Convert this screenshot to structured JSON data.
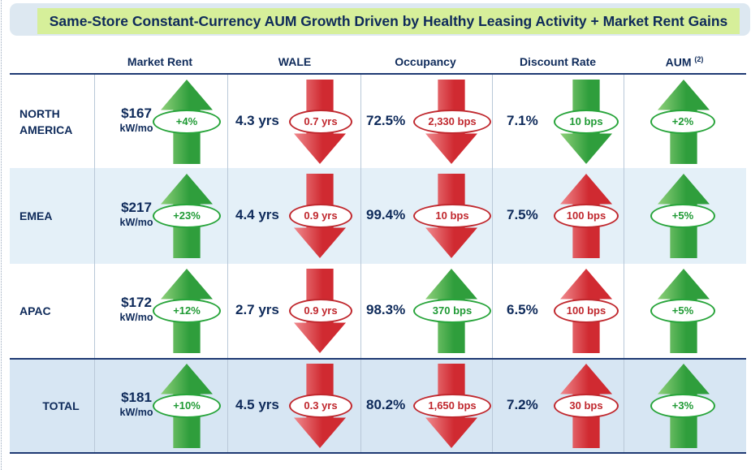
{
  "title": "Same-Store Constant-Currency AUM Growth Driven by Healthy Leasing Activity + Market Rent Gains",
  "headers": {
    "market_rent": "Market Rent",
    "wale": "WALE",
    "occupancy": "Occupancy",
    "discount_rate": "Discount Rate",
    "aum": "AUM",
    "aum_note": "(2)"
  },
  "colors": {
    "up_green": "#3aa845",
    "down_red": "#d9363c",
    "navy": "#0e2a5a"
  },
  "rows": [
    {
      "region": [
        "NORTH",
        "AMERICA"
      ],
      "market_rent": {
        "value": "$167",
        "unit": "kW/mo",
        "change": "+4%",
        "direction": "up"
      },
      "wale": {
        "value": "4.3 yrs",
        "change": "0.7 yrs",
        "direction": "down"
      },
      "occupancy": {
        "value": "72.5%",
        "change": "2,330 bps",
        "direction": "down"
      },
      "discount_rate": {
        "value": "7.1%",
        "change": "10 bps",
        "direction": "down",
        "color": "green"
      },
      "aum": {
        "change": "+2%",
        "direction": "up"
      }
    },
    {
      "region": [
        "EMEA"
      ],
      "market_rent": {
        "value": "$217",
        "unit": "kW/mo",
        "change": "+23%",
        "direction": "up"
      },
      "wale": {
        "value": "4.4 yrs",
        "change": "0.9 yrs",
        "direction": "down"
      },
      "occupancy": {
        "value": "99.4%",
        "change": "10 bps",
        "direction": "down"
      },
      "discount_rate": {
        "value": "7.5%",
        "change": "100 bps",
        "direction": "up",
        "color": "red"
      },
      "aum": {
        "change": "+5%",
        "direction": "up"
      }
    },
    {
      "region": [
        "APAC"
      ],
      "market_rent": {
        "value": "$172",
        "unit": "kW/mo",
        "change": "+12%",
        "direction": "up"
      },
      "wale": {
        "value": "2.7 yrs",
        "change": "0.9 yrs",
        "direction": "down"
      },
      "occupancy": {
        "value": "98.3%",
        "change": "370 bps",
        "direction": "up"
      },
      "discount_rate": {
        "value": "6.5%",
        "change": "100 bps",
        "direction": "up",
        "color": "red"
      },
      "aum": {
        "change": "+5%",
        "direction": "up"
      }
    },
    {
      "region": [
        "TOTAL"
      ],
      "market_rent": {
        "value": "$181",
        "unit": "kW/mo",
        "change": "+10%",
        "direction": "up"
      },
      "wale": {
        "value": "4.5 yrs",
        "change": "0.3 yrs",
        "direction": "down"
      },
      "occupancy": {
        "value": "80.2%",
        "change": "1,650 bps",
        "direction": "down"
      },
      "discount_rate": {
        "value": "7.2%",
        "change": "30 bps",
        "direction": "up",
        "color": "red"
      },
      "aum": {
        "change": "+3%",
        "direction": "up"
      }
    }
  ]
}
